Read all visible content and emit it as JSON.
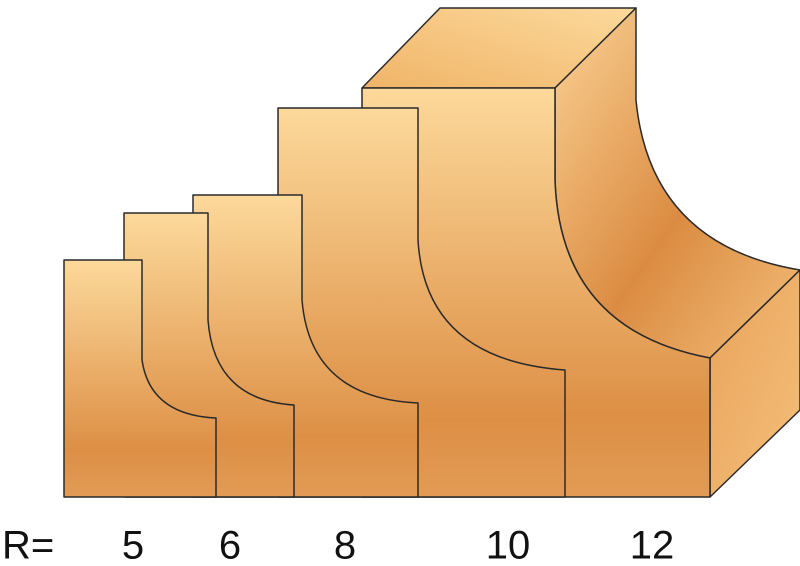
{
  "label": "R=",
  "radii": [
    5,
    6,
    8,
    10,
    12
  ]
}
